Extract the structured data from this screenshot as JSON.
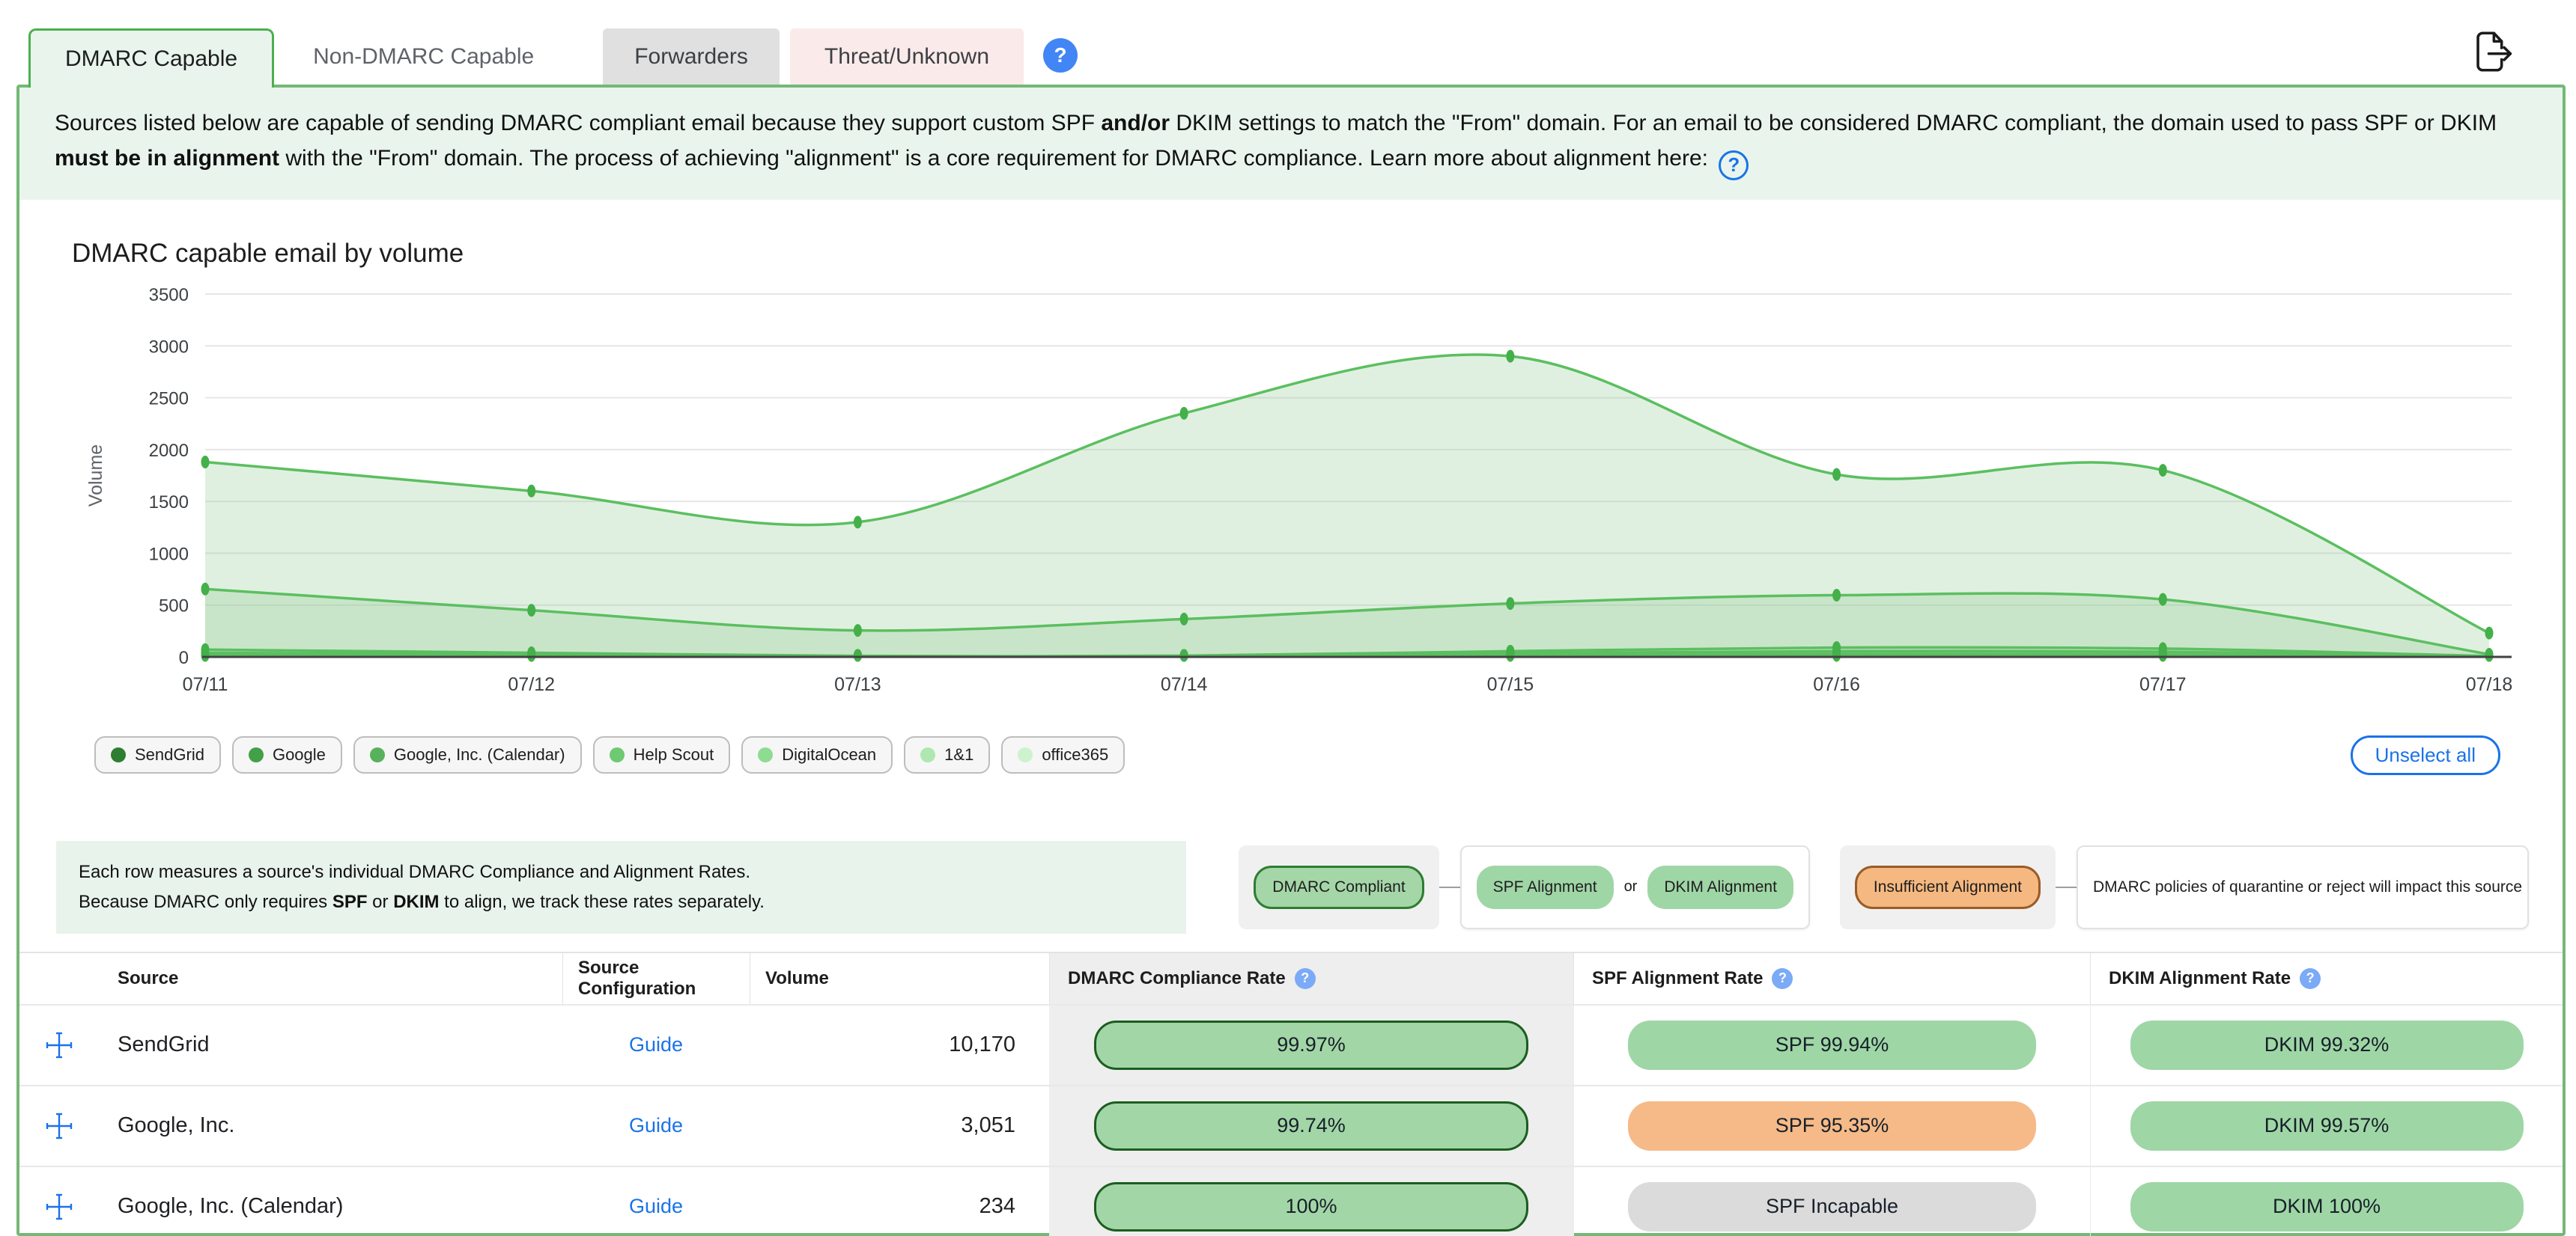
{
  "tabs": [
    {
      "label": "DMARC Capable",
      "active": true
    },
    {
      "label": "Non-DMARC Capable",
      "active": false
    },
    {
      "label": "Forwarders",
      "active": false
    },
    {
      "label": "Threat/Unknown",
      "active": false
    }
  ],
  "icons": {
    "help_glyph": "?"
  },
  "description": {
    "seg1": "Sources listed below are capable of sending DMARC compliant email because they support custom SPF ",
    "bold1": "and/or",
    "seg2": " DKIM settings to match the \"From\" domain. For an email to be considered DMARC compliant, the domain used to pass SPF or DKIM ",
    "bold2": "must be in alignment",
    "seg3": " with the \"From\" domain. The process of achieving \"alignment\" is a core requirement for DMARC compliance. Learn more about alignment here: "
  },
  "chart_controls": {
    "unselect_all": "Unselect all"
  },
  "chart_data": {
    "type": "area",
    "title": "DMARC capable email by volume",
    "xlabel": "",
    "ylabel": "Volume",
    "x": [
      "07/11",
      "07/12",
      "07/13",
      "07/14",
      "07/15",
      "07/16",
      "07/17",
      "07/18"
    ],
    "ylim": [
      0,
      3500
    ],
    "yticks": [
      0,
      500,
      1000,
      1500,
      2000,
      2500,
      3000,
      3500
    ],
    "grid": true,
    "legend_position": "bottom",
    "line_color": "#5bbf60",
    "marker_color": "#43b04a",
    "fill_color": "rgba(139,201,139,0.27)",
    "series": [
      {
        "name": "SendGrid",
        "color": "#2e7d32",
        "values": [
          1880,
          1600,
          1300,
          2350,
          2900,
          1760,
          1800,
          230
        ]
      },
      {
        "name": "Google",
        "color": "#43a047",
        "values": [
          655,
          450,
          255,
          365,
          515,
          595,
          555,
          25
        ]
      },
      {
        "name": "Google, Inc. (Calendar)",
        "color": "#57b25b",
        "values": [
          25,
          20,
          5,
          8,
          30,
          40,
          35,
          5
        ]
      },
      {
        "name": "Help Scout",
        "color": "#6ec973",
        "values": [
          70,
          40,
          10,
          12,
          55,
          90,
          80,
          8
        ]
      },
      {
        "name": "DigitalOcean",
        "color": "#8edc92",
        "values": [
          40,
          25,
          6,
          8,
          35,
          55,
          50,
          5
        ]
      },
      {
        "name": "1&1",
        "color": "#aee8b0",
        "values": [
          15,
          10,
          3,
          5,
          15,
          25,
          20,
          3
        ]
      },
      {
        "name": "office365",
        "color": "#cdf2ce",
        "values": [
          8,
          5,
          2,
          3,
          8,
          12,
          10,
          2
        ]
      }
    ]
  },
  "info": {
    "line1": "Each row measures a source's individual DMARC Compliance and Alignment Rates.",
    "line2_seg1": "Because DMARC only requires ",
    "line2_bold1": "SPF",
    "line2_seg2": " or ",
    "line2_bold2": "DKIM",
    "line2_seg3": " to align, we track these rates separately."
  },
  "legend_cards": {
    "compliant": "DMARC Compliant",
    "spf": "SPF Alignment",
    "or": "or",
    "dkim": "DKIM Alignment",
    "insufficient": "Insufficient Alignment",
    "note": "DMARC policies of quarantine or reject will impact this source"
  },
  "table": {
    "headers": {
      "source": "Source",
      "config": "Source Configuration",
      "volume": "Volume",
      "compliance": "DMARC Compliance Rate",
      "spf": "SPF Alignment Rate",
      "dkim": "DKIM Alignment Rate"
    },
    "rows": [
      {
        "source": "SendGrid",
        "config": "Guide",
        "volume": "10,170",
        "compliance": "99.97%",
        "spf": {
          "label": "SPF 99.94%",
          "status": "good"
        },
        "dkim": {
          "label": "DKIM 99.32%",
          "status": "good"
        }
      },
      {
        "source": "Google, Inc.",
        "config": "Guide",
        "volume": "3,051",
        "compliance": "99.74%",
        "spf": {
          "label": "SPF 95.35%",
          "status": "warn"
        },
        "dkim": {
          "label": "DKIM 99.57%",
          "status": "good"
        }
      },
      {
        "source": "Google, Inc. (Calendar)",
        "config": "Guide",
        "volume": "234",
        "compliance": "100%",
        "spf": {
          "label": "SPF Incapable",
          "status": "incapable"
        },
        "dkim": {
          "label": "DKIM 100%",
          "status": "good"
        }
      }
    ]
  },
  "colors": {
    "panel_border": "#74b877",
    "active_tab_bg": "#e9f5ec",
    "accent_blue": "#1a73e8",
    "pill_green": "#9fd6a5",
    "pill_orange": "#f6ba88",
    "pill_gray": "#dbdbdb",
    "compliance_border": "#1b5e20"
  }
}
